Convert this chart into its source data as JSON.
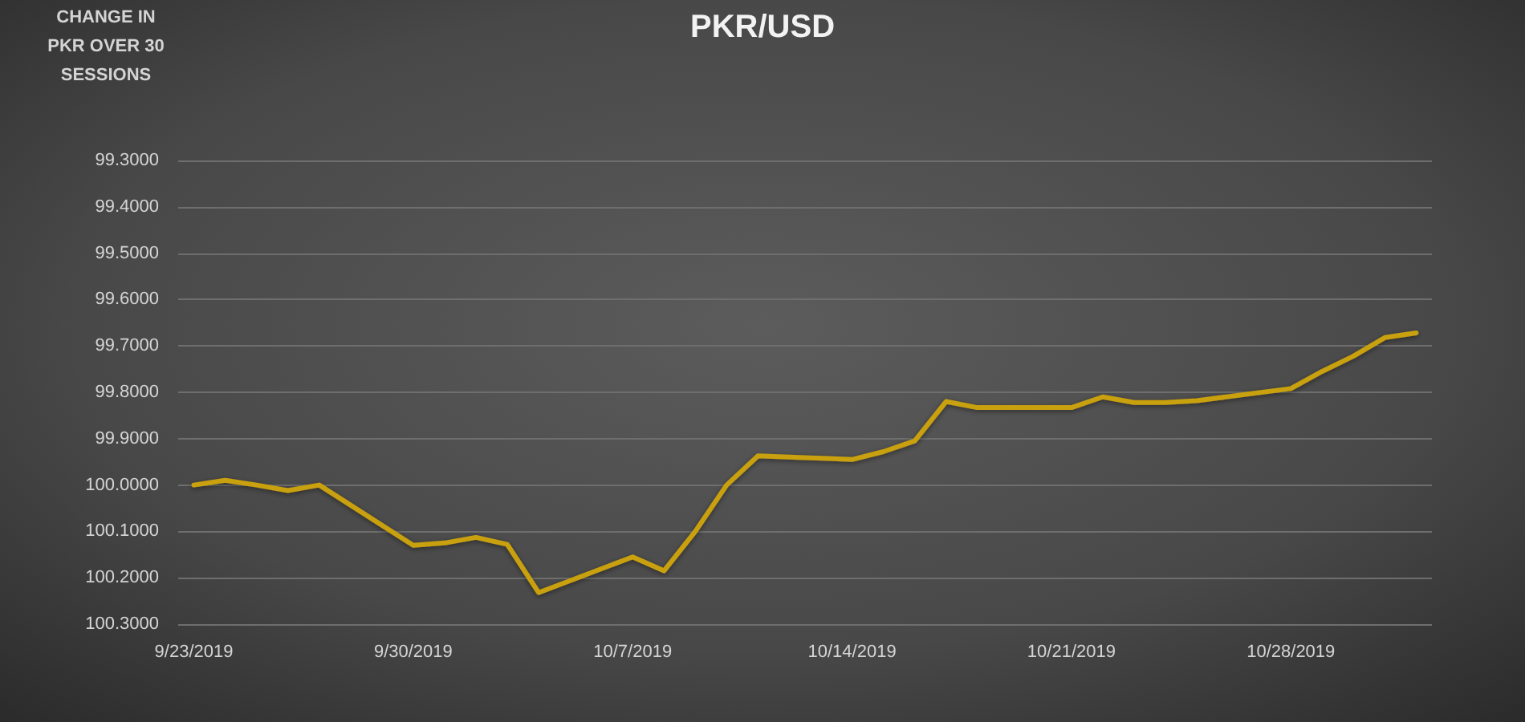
{
  "chart_data": {
    "type": "line",
    "title": "PKR/USD",
    "ylabel": "CHANGE IN PKR OVER 30 SESSIONS",
    "x": [
      "2019-09-23",
      "2019-09-24",
      "2019-09-25",
      "2019-09-26",
      "2019-09-27",
      "2019-09-30",
      "2019-10-01",
      "2019-10-02",
      "2019-10-03",
      "2019-10-04",
      "2019-10-07",
      "2019-10-08",
      "2019-10-09",
      "2019-10-10",
      "2019-10-11",
      "2019-10-14",
      "2019-10-15",
      "2019-10-16",
      "2019-10-17",
      "2019-10-18",
      "2019-10-21",
      "2019-10-22",
      "2019-10-23",
      "2019-10-24",
      "2019-10-25",
      "2019-10-28",
      "2019-10-29",
      "2019-10-30",
      "2019-10-31",
      "2019-11-01"
    ],
    "values": [
      100.0,
      99.99,
      100.0,
      100.012,
      100.0,
      100.13,
      100.125,
      100.113,
      100.128,
      100.232,
      100.155,
      100.185,
      100.1,
      100.0,
      99.937,
      99.945,
      99.928,
      99.905,
      99.82,
      99.833,
      99.833,
      99.81,
      99.822,
      99.822,
      99.818,
      99.792,
      99.755,
      99.722,
      99.682,
      99.672
    ],
    "color": "#c9a00e",
    "line_style": "solid",
    "xlim": [
      "2019-09-22T12:00",
      "2019-11-01T12:00"
    ],
    "xticks": [
      {
        "value": "2019-09-23",
        "label": "9/23/2019"
      },
      {
        "value": "2019-09-30",
        "label": "9/30/2019"
      },
      {
        "value": "2019-10-07",
        "label": "10/7/2019"
      },
      {
        "value": "2019-10-14",
        "label": "10/14/2019"
      },
      {
        "value": "2019-10-21",
        "label": "10/21/2019"
      },
      {
        "value": "2019-10-28",
        "label": "10/28/2019"
      }
    ],
    "ylim": [
      100.3,
      99.3
    ],
    "yticks": [
      {
        "value": 99.3,
        "label": "99.3000"
      },
      {
        "value": 99.4,
        "label": "99.4000"
      },
      {
        "value": 99.5,
        "label": "99.5000"
      },
      {
        "value": 99.6,
        "label": "99.6000"
      },
      {
        "value": 99.7,
        "label": "99.7000"
      },
      {
        "value": 99.8,
        "label": "99.8000"
      },
      {
        "value": 99.9,
        "label": "99.9000"
      },
      {
        "value": 100.0,
        "label": "100.0000"
      },
      {
        "value": 100.1,
        "label": "100.1000"
      },
      {
        "value": 100.2,
        "label": "100.2000"
      },
      {
        "value": 100.3,
        "label": "100.3000"
      }
    ],
    "grid": "y"
  }
}
